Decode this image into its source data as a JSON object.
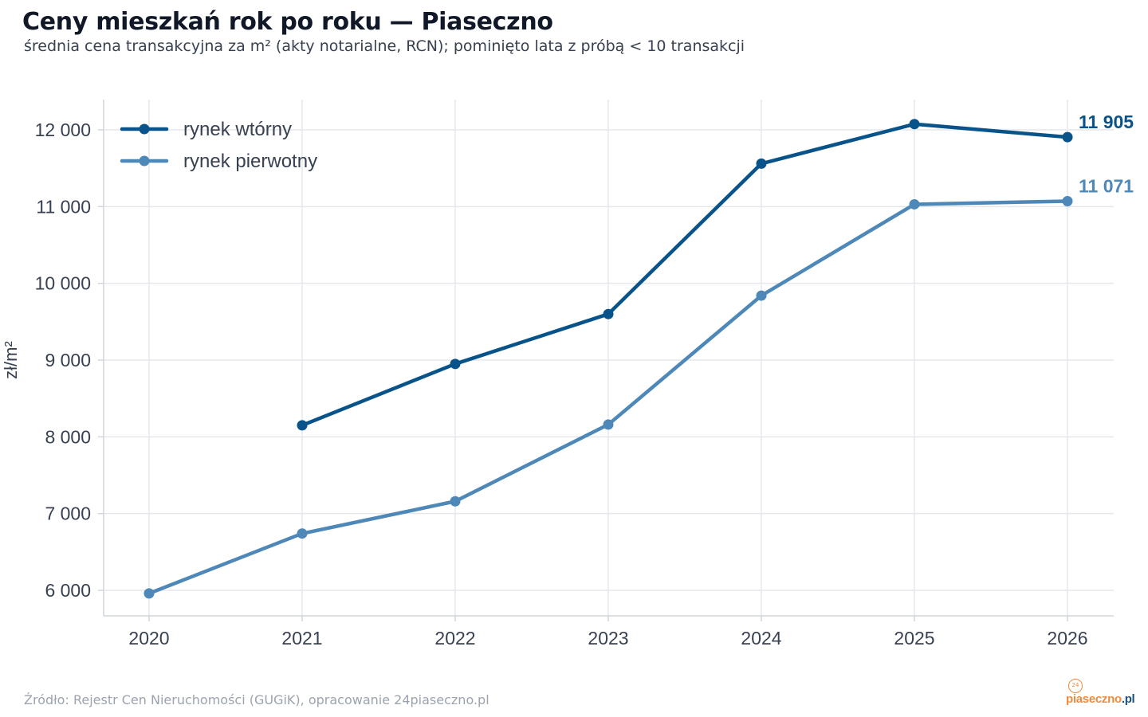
{
  "chart_data": {
    "type": "line",
    "title": "Ceny mieszkań rok po roku — Piaseczno",
    "subtitle": "średnia cena transakcyjna za m² (akty notarialne, RCN); pominięto lata z próbą < 10 transakcji",
    "xlabel": "",
    "ylabel": "zł/m²",
    "categories": [
      "2020",
      "2021",
      "2022",
      "2023",
      "2024",
      "2025",
      "2026"
    ],
    "ylim": [
      5650,
      12350
    ],
    "yticks": [
      6000,
      7000,
      8000,
      9000,
      10000,
      11000,
      12000
    ],
    "ytick_labels": [
      "6 000",
      "7 000",
      "8 000",
      "9 000",
      "10 000",
      "11 000",
      "12 000"
    ],
    "grid": true,
    "legend_position": "top-left",
    "series": [
      {
        "name": "rynek wtórny",
        "color": "#08538a",
        "values": [
          null,
          8150,
          8950,
          9600,
          11560,
          12075,
          11905
        ],
        "end_label": "11 905"
      },
      {
        "name": "rynek pierwotny",
        "color": "#4e88b8",
        "values": [
          5960,
          6740,
          7160,
          8160,
          9840,
          11030,
          11071
        ],
        "end_label": "11 071"
      }
    ]
  },
  "footer": {
    "source": "Źródło: Rejestr Cen Nieruchomości (GUGiK), opracowanie 24piaseczno.pl"
  },
  "logo": {
    "badge": "24",
    "name": "piaseczno",
    "tld": ".pl"
  }
}
